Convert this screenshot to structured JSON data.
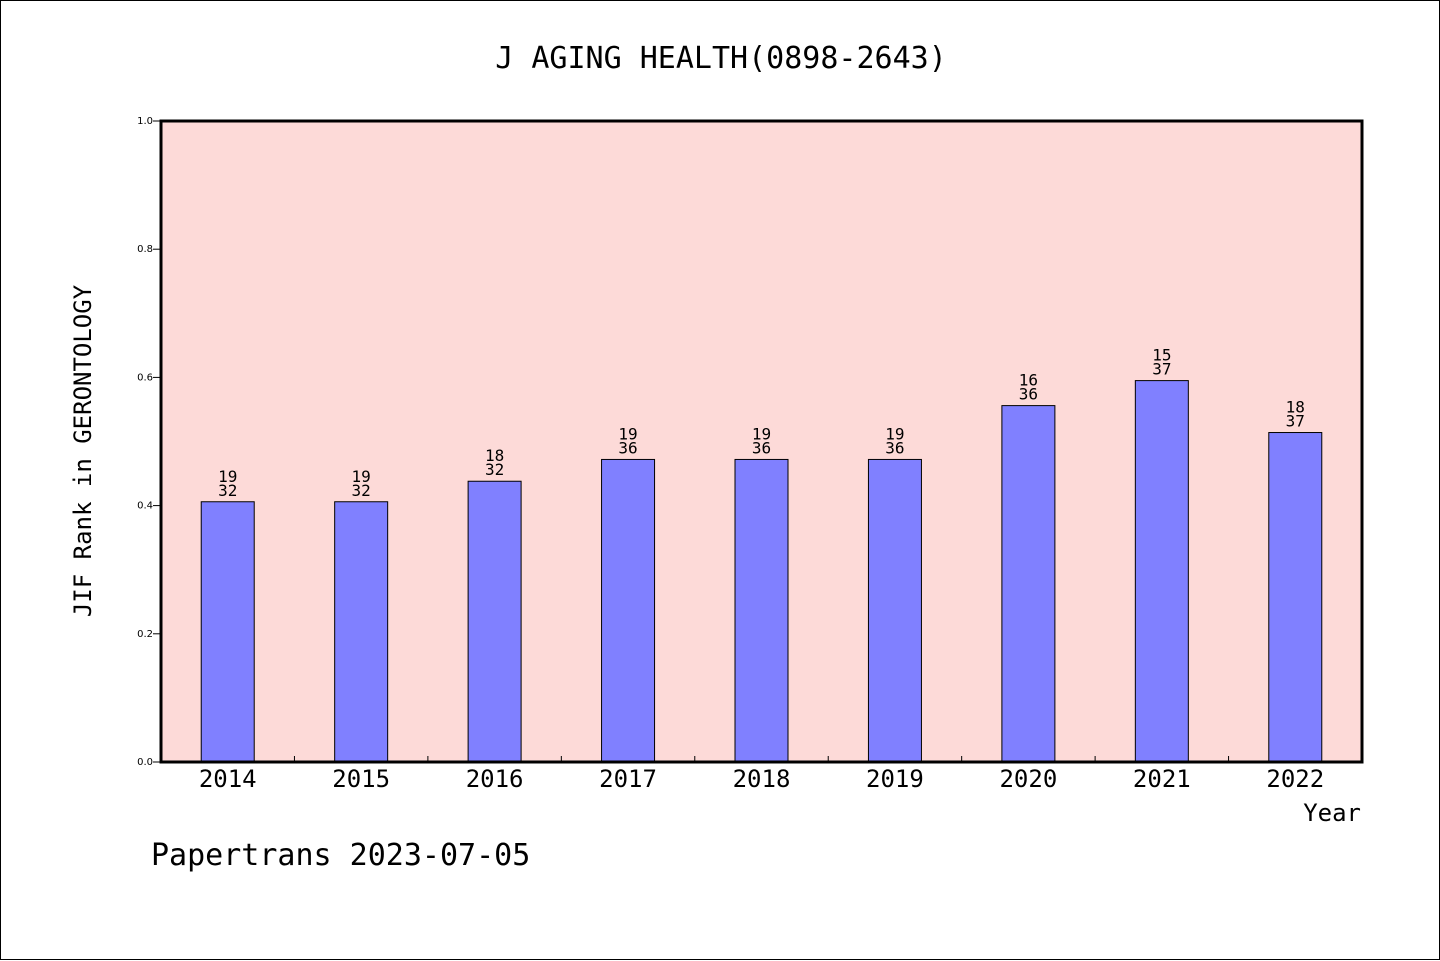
{
  "chart_data": {
    "type": "bar",
    "title": "J AGING HEALTH(0898-2643)",
    "xlabel": "Year",
    "ylabel": "JIF Rank in GERONTOLOGY",
    "ylim": [
      0,
      1.0
    ],
    "yticks": [
      "0.0",
      "0.2",
      "0.4",
      "0.6",
      "0.8",
      "1.0"
    ],
    "categories": [
      "2014",
      "2015",
      "2016",
      "2017",
      "2018",
      "2019",
      "2020",
      "2021",
      "2022"
    ],
    "values": [
      0.406,
      0.406,
      0.438,
      0.472,
      0.472,
      0.472,
      0.556,
      0.595,
      0.514
    ],
    "rank": [
      "19",
      "19",
      "18",
      "19",
      "19",
      "19",
      "16",
      "15",
      "18"
    ],
    "total": [
      "32",
      "32",
      "32",
      "36",
      "36",
      "36",
      "36",
      "37",
      "37"
    ],
    "grid": false,
    "plot_background": "#fddad8",
    "bar_color": "#8080ff"
  },
  "footer": "Papertrans 2023-07-05"
}
